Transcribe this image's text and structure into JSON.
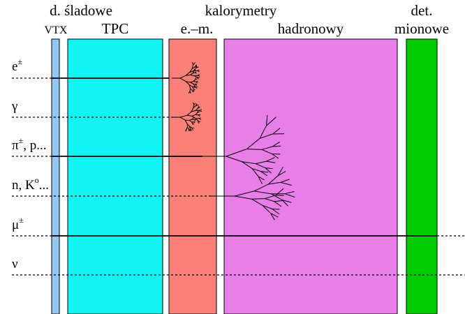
{
  "headers": {
    "tracking_group": "d. śladowe",
    "vtx": "VTX",
    "tpc": "TPC",
    "calorimeters_group": "kalorymetry",
    "em": "e.–m.",
    "hadronic": "hadronowy",
    "muon_line1": "det.",
    "muon_line2": "mionowe"
  },
  "particles": [
    {
      "id": "electron",
      "label": "e",
      "sup": "±"
    },
    {
      "id": "photon",
      "label": "γ",
      "sup": ""
    },
    {
      "id": "charged-hadron",
      "label": "π",
      "sup": "±",
      "suffix": ", p..."
    },
    {
      "id": "neutral-hadron",
      "label": "n, K",
      "sup": "o",
      "suffix": "..."
    },
    {
      "id": "muon",
      "label": "μ",
      "sup": "±"
    },
    {
      "id": "neutrino",
      "label": "ν",
      "sup": ""
    }
  ],
  "colors": {
    "vtx": "#93c7f4",
    "tpc": "#12f4f4",
    "em": "#fb8078",
    "hadronic": "#e87ee8",
    "muon": "#00cc00"
  }
}
